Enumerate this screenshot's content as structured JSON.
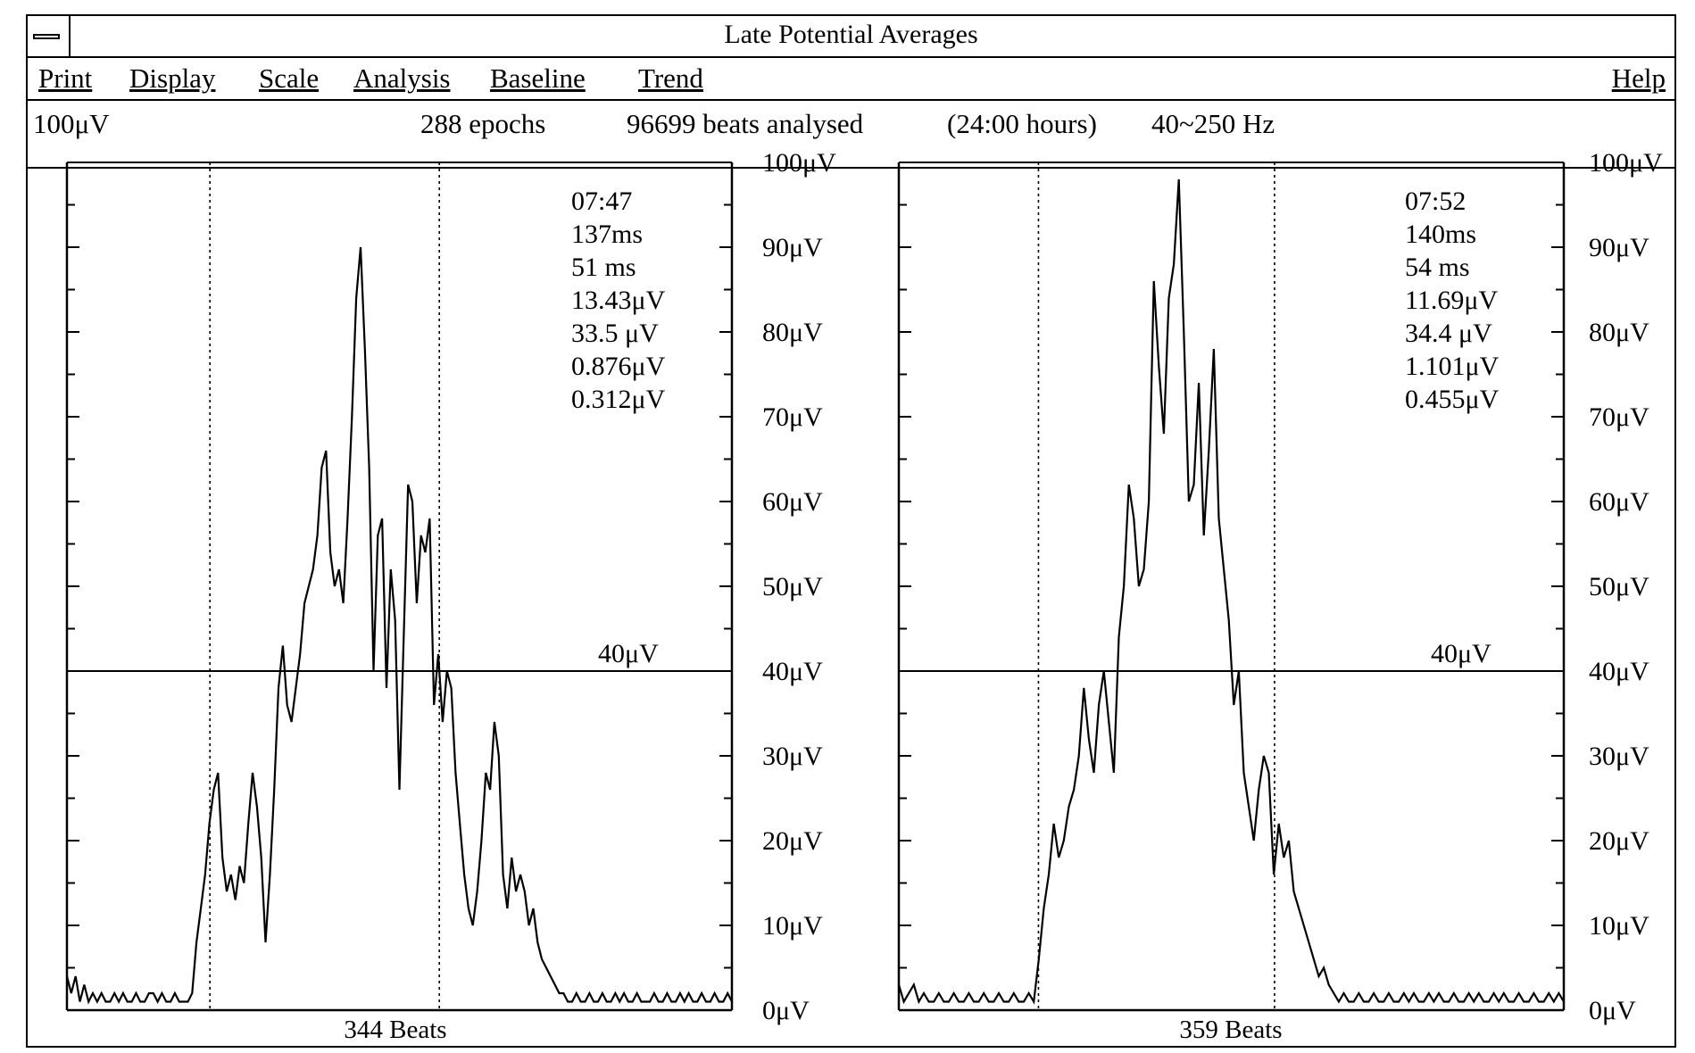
{
  "window": {
    "title": "Late Potential Averages"
  },
  "menu": {
    "print": "Print",
    "display": "Display",
    "scale": "Scale",
    "analysis": "Analysis",
    "baseline": "Baseline",
    "trend": "Trend",
    "help": "Help"
  },
  "info": {
    "scale": "100μV",
    "epochs": "288 epochs",
    "beats_analysed": "96699 beats analysed",
    "duration": "(24:00 hours)",
    "filter": "40~250 Hz"
  },
  "axis": {
    "ticks": [
      "0μV",
      "10μV",
      "20μV",
      "30μV",
      "40μV",
      "50μV",
      "60μV",
      "70μV",
      "80μV",
      "90μV",
      "100μV"
    ],
    "threshold_label": "40μV"
  },
  "panels": [
    {
      "beats_label": "344 Beats",
      "readouts": [
        "07:47",
        "137ms",
        "51 ms",
        "13.43μV",
        "33.5 μV",
        "0.876μV",
        "0.312μV"
      ]
    },
    {
      "beats_label": "359 Beats",
      "readouts": [
        "07:52",
        "140ms",
        "54 ms",
        "11.69μV",
        "34.4 μV",
        "1.101μV",
        "0.455μV"
      ]
    }
  ],
  "chart_data": [
    {
      "type": "line",
      "ylim": [
        0,
        100
      ],
      "threshold": 40,
      "markers": [
        0.215,
        0.56
      ],
      "y": [
        4,
        2,
        4,
        1,
        3,
        1,
        2,
        1,
        2,
        1,
        1,
        2,
        1,
        2,
        1,
        1,
        2,
        1,
        1,
        2,
        2,
        1,
        2,
        1,
        1,
        2,
        1,
        1,
        1,
        2,
        8,
        12,
        16,
        22,
        26,
        28,
        18,
        14,
        16,
        13,
        17,
        15,
        22,
        28,
        24,
        18,
        8,
        16,
        26,
        38,
        43,
        36,
        34,
        38,
        42,
        48,
        50,
        52,
        56,
        64,
        66,
        54,
        50,
        52,
        48,
        58,
        70,
        84,
        90,
        78,
        64,
        40,
        56,
        58,
        38,
        52,
        46,
        26,
        44,
        62,
        60,
        48,
        56,
        54,
        58,
        36,
        42,
        34,
        40,
        38,
        28,
        22,
        16,
        12,
        10,
        14,
        20,
        28,
        26,
        34,
        30,
        16,
        12,
        18,
        14,
        16,
        14,
        10,
        12,
        8,
        6,
        5,
        4,
        3,
        2,
        2,
        1,
        1,
        2,
        1,
        1,
        2,
        1,
        1,
        2,
        1,
        1,
        2,
        1,
        2,
        1,
        1,
        2,
        1,
        1,
        1,
        2,
        1,
        1,
        2,
        1,
        1,
        2,
        1,
        2,
        1,
        1,
        2,
        1,
        1,
        2,
        1,
        1,
        2,
        1
      ]
    },
    {
      "type": "line",
      "ylim": [
        0,
        100
      ],
      "threshold": 40,
      "markers": [
        0.21,
        0.565
      ],
      "y": [
        3,
        1,
        2,
        3,
        1,
        2,
        1,
        1,
        2,
        1,
        1,
        2,
        1,
        1,
        2,
        1,
        1,
        2,
        1,
        1,
        2,
        1,
        1,
        2,
        1,
        1,
        2,
        1,
        6,
        12,
        16,
        22,
        18,
        20,
        24,
        26,
        30,
        38,
        32,
        28,
        36,
        40,
        34,
        28,
        44,
        50,
        62,
        58,
        50,
        52,
        60,
        86,
        76,
        68,
        84,
        88,
        98,
        80,
        60,
        62,
        74,
        56,
        66,
        78,
        58,
        52,
        46,
        36,
        40,
        28,
        24,
        20,
        26,
        30,
        28,
        16,
        22,
        18,
        20,
        14,
        12,
        10,
        8,
        6,
        4,
        5,
        3,
        2,
        1,
        2,
        1,
        1,
        2,
        1,
        1,
        2,
        1,
        1,
        2,
        1,
        1,
        2,
        1,
        2,
        1,
        1,
        2,
        1,
        2,
        1,
        1,
        2,
        1,
        1,
        2,
        1,
        2,
        1,
        1,
        2,
        1,
        2,
        1,
        1,
        2,
        1,
        1,
        2,
        1,
        1,
        2,
        1,
        2,
        1
      ]
    }
  ]
}
